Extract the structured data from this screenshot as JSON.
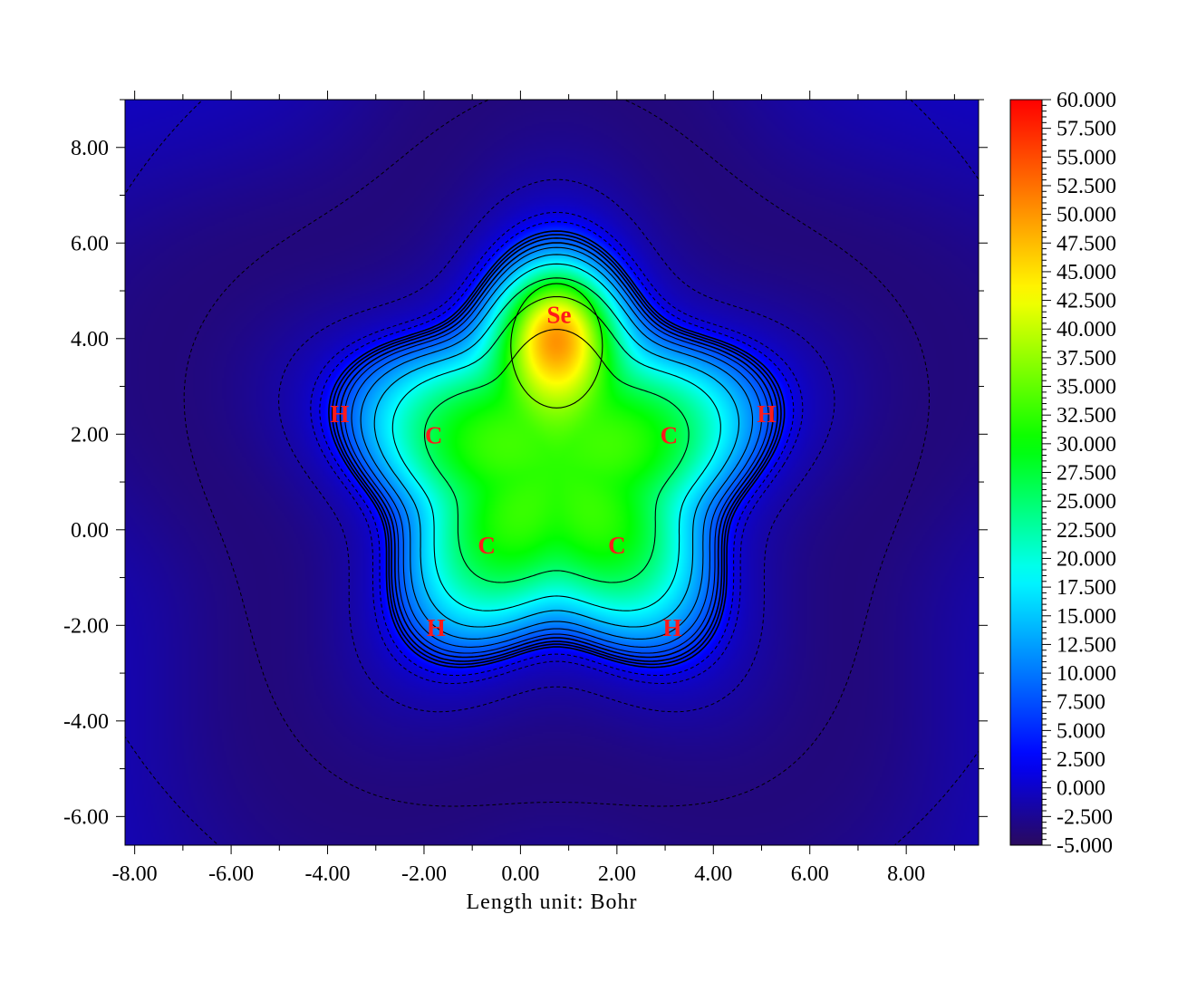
{
  "chart_data": {
    "type": "heatmap",
    "title": "",
    "xlabel": "Length unit: Bohr",
    "ylabel": "",
    "xlim": [
      -8.2,
      9.5
    ],
    "ylim": [
      -6.6,
      9.0
    ],
    "x_ticks": [
      -8,
      -6,
      -4,
      -2,
      0,
      2,
      4,
      6,
      8
    ],
    "y_ticks": [
      -6,
      -4,
      -2,
      0,
      2,
      4,
      6,
      8
    ],
    "x_tick_labels": [
      "-8.00",
      "-6.00",
      "-4.00",
      "-2.00",
      "0.00",
      "2.00",
      "4.00",
      "6.00",
      "8.00"
    ],
    "y_tick_labels": [
      "-6.00",
      "-4.00",
      "-2.00",
      "0.00",
      "2.00",
      "4.00",
      "6.00",
      "8.00"
    ],
    "colorbar": {
      "min": -5.0,
      "max": 60.0,
      "ticks": [
        60,
        57.5,
        55,
        52.5,
        50,
        47.5,
        45,
        42.5,
        40,
        37.5,
        35,
        32.5,
        30,
        27.5,
        25,
        22.5,
        20,
        17.5,
        15,
        12.5,
        10,
        7.5,
        5,
        2.5,
        0,
        -2.5,
        -5
      ],
      "tick_labels": [
        "60.000",
        "57.500",
        "55.000",
        "52.500",
        "50.000",
        "47.500",
        "45.000",
        "42.500",
        "40.000",
        "37.500",
        "35.000",
        "32.500",
        "30.000",
        "27.500",
        "25.000",
        "22.500",
        "20.000",
        "17.500",
        "15.000",
        "12.500",
        "10.000",
        "7.500",
        "5.000",
        "2.500",
        "0.000",
        "-2.500",
        "-5.000"
      ],
      "colors": [
        "#2a0a5e",
        "#0000ff",
        "#00ffff",
        "#00ff00",
        "#ffff00",
        "#ff0000"
      ]
    },
    "atoms": [
      {
        "label": "Se",
        "x": 0.8,
        "y": 4.5
      },
      {
        "label": "C",
        "x": -1.8,
        "y": 1.98
      },
      {
        "label": "C",
        "x": 3.08,
        "y": 1.98
      },
      {
        "label": "C",
        "x": -0.7,
        "y": -0.33
      },
      {
        "label": "C",
        "x": 2.0,
        "y": -0.33
      },
      {
        "label": "H",
        "x": -3.75,
        "y": 2.42
      },
      {
        "label": "H",
        "x": 5.1,
        "y": 2.42
      },
      {
        "label": "H",
        "x": -1.75,
        "y": -2.05
      },
      {
        "label": "H",
        "x": 3.15,
        "y": -2.05
      }
    ]
  }
}
